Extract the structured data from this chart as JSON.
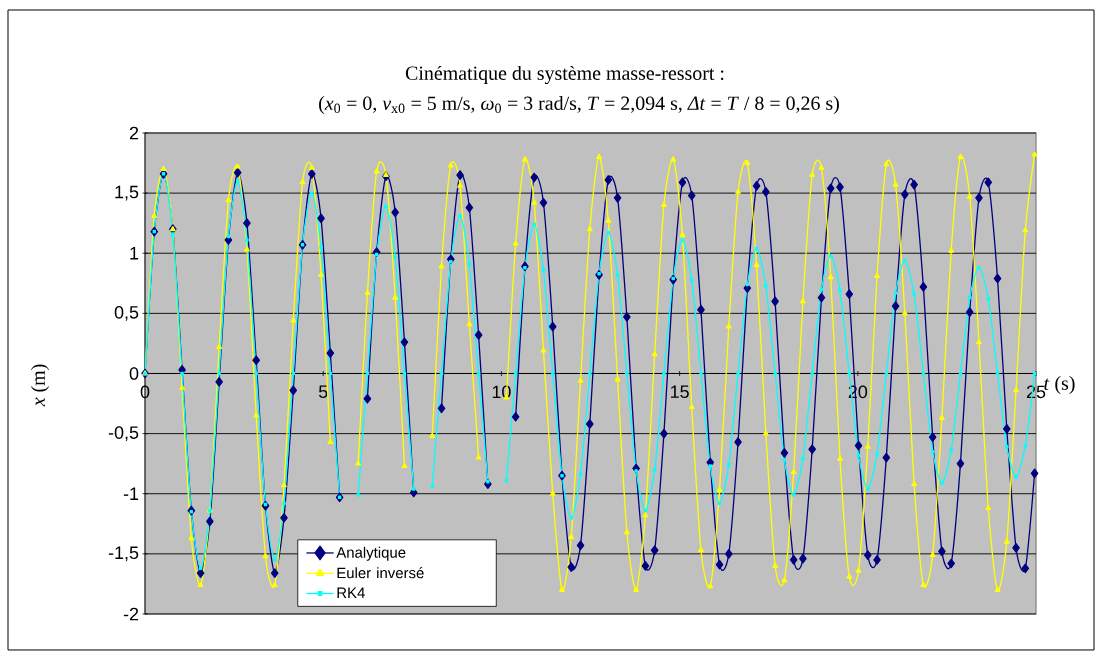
{
  "chart_data": {
    "type": "line",
    "title": "Cinématique du système masse-ressort :",
    "subtitle": "(*x*$_{0}$ = 0, *v*$_{x0}$ = 5 m/s, *ω*$_{0}$ = 3 rad/s, *T* = 2,094 s, *Δt* = *T* / 8 = 0,26 s)",
    "xlabel": "*t*  (s)",
    "ylabel": "*x*  (m)",
    "x": [
      0,
      0.26,
      0.52,
      0.78,
      1.04,
      1.3,
      1.56,
      1.82,
      2.08,
      2.34,
      2.6,
      2.86,
      3.12,
      3.38,
      3.64,
      3.9,
      4.16,
      4.42,
      4.68,
      4.94,
      5.2,
      5.46,
      5.72,
      5.98,
      6.24,
      6.5,
      6.76,
      7.02,
      7.28,
      7.54,
      7.8,
      8.06,
      8.32,
      8.58,
      8.84,
      9.1,
      9.36,
      9.62,
      9.88,
      10.14,
      10.4,
      10.66,
      10.92,
      11.18,
      11.44,
      11.7,
      11.96,
      12.22,
      12.48,
      12.74,
      13,
      13.26,
      13.52,
      13.78,
      14.04,
      14.3,
      14.56,
      14.82,
      15.08,
      15.34,
      15.6,
      15.86,
      16.12,
      16.38,
      16.64,
      16.9,
      17.16,
      17.42,
      17.68,
      17.94,
      18.2,
      18.46,
      18.72,
      18.98,
      19.24,
      19.5,
      19.76,
      20.02,
      20.28,
      20.54,
      20.8,
      21.06,
      21.32,
      21.58,
      21.84,
      22.1,
      22.36,
      22.62,
      22.88,
      23.14,
      23.4,
      23.66,
      23.92,
      24.18,
      24.44,
      24.7,
      24.96
    ],
    "xlim": [
      0,
      25
    ],
    "xticks": [
      0,
      5,
      10,
      15,
      20,
      25
    ],
    "ylim": [
      -2,
      2
    ],
    "yticks": [
      -2,
      {
        "value": -1.5,
        "label": "-1,5"
      },
      -1,
      {
        "value": -0.5,
        "label": "-0,5"
      },
      0,
      {
        "value": 0.5,
        "label": "0,5"
      },
      1,
      {
        "value": 1.5,
        "label": "1,5"
      },
      2
    ],
    "grid": "y",
    "legend": "bottom left",
    "line_style": "solid",
    "series": [
      {
        "name": "Analytique",
        "color": "#000080",
        "marker": "diamond",
        "values": [
          0,
          1.18,
          1.66,
          1.2,
          0.03,
          -1.14,
          -1.66,
          -1.23,
          -0.07,
          1.11,
          1.67,
          1.25,
          0.11,
          -1.1,
          -1.66,
          -1.2,
          -0.14,
          1.07,
          1.66,
          1.29,
          0.17,
          -1.03,
          null,
          null,
          -0.21,
          1.01,
          1.64,
          1.34,
          0.26,
          -0.99,
          null,
          null,
          -0.29,
          0.95,
          1.65,
          1.38,
          0.32,
          -0.92,
          null,
          null,
          -0.36,
          0.89,
          1.63,
          1.42,
          0.39,
          -0.85,
          -1.61,
          -1.43,
          -0.42,
          0.82,
          1.61,
          1.46,
          0.47,
          -0.79,
          -1.6,
          -1.47,
          -0.5,
          0.78,
          1.59,
          1.48,
          0.53,
          -0.74,
          -1.59,
          -1.5,
          -0.57,
          0.71,
          1.56,
          1.51,
          0.6,
          -0.66,
          -1.55,
          -1.54,
          -0.63,
          0.63,
          1.54,
          1.55,
          0.66,
          -0.6,
          -1.51,
          -1.55,
          -0.7,
          0.56,
          1.49,
          1.57,
          0.72,
          -0.53,
          -1.48,
          -1.58,
          -0.75,
          0.51,
          1.46,
          1.59,
          0.79,
          -0.46,
          -1.45,
          -1.62,
          -0.83
        ]
      },
      {
        "name": "Euler inversé",
        "color": "#ffff00",
        "marker": "triangle",
        "values": [
          0,
          1.31,
          1.7,
          1.2,
          -0.12,
          -1.37,
          -1.76,
          -1.14,
          0.22,
          1.44,
          1.72,
          1.03,
          -0.35,
          -1.52,
          -1.76,
          -0.93,
          0.44,
          1.59,
          1.71,
          0.82,
          -0.57,
          null,
          null,
          -0.75,
          0.67,
          1.68,
          1.65,
          0.63,
          -0.77,
          null,
          null,
          -0.52,
          0.89,
          1.73,
          1.56,
          0.41,
          -0.7,
          null,
          null,
          -0.2,
          1.08,
          1.78,
          1.42,
          0.19,
          -1.0,
          -1.8,
          -1.36,
          -0.06,
          1.2,
          1.8,
          1.27,
          -0.05,
          -1.32,
          -1.8,
          -1.18,
          0.16,
          1.4,
          1.78,
          1.15,
          -0.28,
          -1.47,
          -1.77,
          -0.97,
          0.39,
          1.51,
          1.75,
          0.9,
          -0.5,
          -1.6,
          -1.72,
          -0.82,
          0.6,
          1.65,
          1.71,
          0.8,
          -0.71,
          -1.69,
          -1.64,
          -0.61,
          0.81,
          1.74,
          1.57,
          0.5,
          -0.92,
          -1.76,
          -1.51,
          -0.37,
          1.02,
          1.8,
          1.47,
          0.26,
          -1.12,
          -1.8,
          -1.4,
          -0.14,
          1.19,
          1.82
        ]
      },
      {
        "name": "RK4",
        "color": "#00ffff",
        "marker": "square",
        "values": [
          0,
          1.18,
          1.66,
          1.16,
          0,
          -1.15,
          -1.62,
          -1.14,
          0,
          1.14,
          1.6,
          1.11,
          0,
          -1.09,
          -1.55,
          -1.08,
          0,
          1.07,
          1.5,
          1.05,
          0,
          -1.03,
          null,
          -1.01,
          0,
          0.99,
          1.39,
          0.97,
          0,
          -0.96,
          null,
          -0.94,
          0,
          0.93,
          1.31,
          0.91,
          0,
          -0.9,
          null,
          -0.89,
          0,
          0.88,
          1.24,
          0.86,
          0,
          -0.85,
          -1.2,
          -0.84,
          0,
          0.83,
          1.17,
          0.82,
          0,
          -0.81,
          -1.14,
          -0.8,
          0,
          0.79,
          1.11,
          0.78,
          0,
          -0.77,
          -1.08,
          -0.76,
          0,
          0.74,
          1.04,
          0.73,
          0,
          -0.72,
          -1.01,
          -0.71,
          0,
          0.7,
          0.98,
          0.69,
          0,
          -0.68,
          -0.96,
          -0.67,
          0,
          0.67,
          0.94,
          0.66,
          0,
          -0.65,
          -0.91,
          -0.64,
          0,
          0.63,
          0.88,
          0.62,
          0,
          -0.61,
          -0.86,
          -0.6,
          0
        ]
      }
    ]
  }
}
